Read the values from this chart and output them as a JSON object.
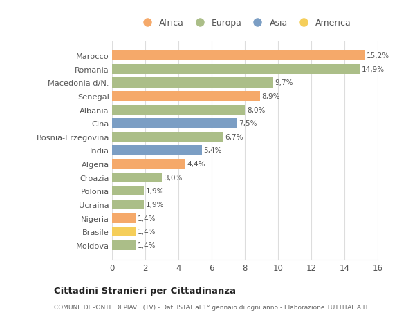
{
  "countries": [
    "Marocco",
    "Romania",
    "Macedonia d/N.",
    "Senegal",
    "Albania",
    "Cina",
    "Bosnia-Erzegovina",
    "India",
    "Algeria",
    "Croazia",
    "Polonia",
    "Ucraina",
    "Nigeria",
    "Brasile",
    "Moldova"
  ],
  "values": [
    15.2,
    14.9,
    9.7,
    8.9,
    8.0,
    7.5,
    6.7,
    5.4,
    4.4,
    3.0,
    1.9,
    1.9,
    1.4,
    1.4,
    1.4
  ],
  "labels": [
    "15,2%",
    "14,9%",
    "9,7%",
    "8,9%",
    "8,0%",
    "7,5%",
    "6,7%",
    "5,4%",
    "4,4%",
    "3,0%",
    "1,9%",
    "1,9%",
    "1,4%",
    "1,4%",
    "1,4%"
  ],
  "continents": [
    "Africa",
    "Europa",
    "Europa",
    "Africa",
    "Europa",
    "Asia",
    "Europa",
    "Asia",
    "Africa",
    "Europa",
    "Europa",
    "Europa",
    "Africa",
    "America",
    "Europa"
  ],
  "colors": {
    "Africa": "#F5A96A",
    "Europa": "#ABBE88",
    "Asia": "#7B9EC4",
    "America": "#F5CE5A"
  },
  "legend_order": [
    "Africa",
    "Europa",
    "Asia",
    "America"
  ],
  "title": "Cittadini Stranieri per Cittadinanza",
  "subtitle": "COMUNE DI PONTE DI PIAVE (TV) - Dati ISTAT al 1° gennaio di ogni anno - Elaborazione TUTTITALIA.IT",
  "xlim": [
    0,
    16
  ],
  "xticks": [
    0,
    2,
    4,
    6,
    8,
    10,
    12,
    14,
    16
  ],
  "background_color": "#ffffff",
  "grid_color": "#dddddd",
  "bar_height": 0.72
}
